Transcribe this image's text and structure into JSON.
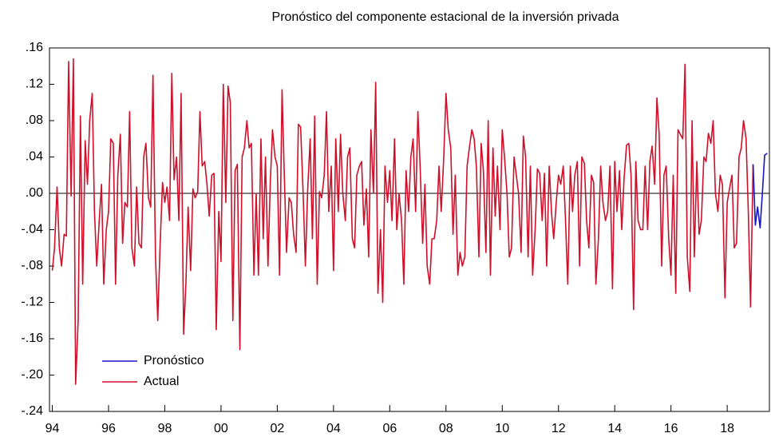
{
  "chart_data": {
    "type": "line",
    "title": "Pronóstico del componente estacional de la inversión privada",
    "xlim": [
      1993.9,
      2019.5
    ],
    "xticks": [
      {
        "value": 1994,
        "label": "94"
      },
      {
        "value": 1996,
        "label": "96"
      },
      {
        "value": 1998,
        "label": "98"
      },
      {
        "value": 2000,
        "label": "00"
      },
      {
        "value": 2002,
        "label": "02"
      },
      {
        "value": 2004,
        "label": "04"
      },
      {
        "value": 2006,
        "label": "06"
      },
      {
        "value": 2008,
        "label": "08"
      },
      {
        "value": 2010,
        "label": "10"
      },
      {
        "value": 2012,
        "label": "12"
      },
      {
        "value": 2014,
        "label": "14"
      },
      {
        "value": 2016,
        "label": "16"
      },
      {
        "value": 2018,
        "label": "18"
      }
    ],
    "ylim": [
      -0.24,
      0.16
    ],
    "yticks": [
      {
        "value": 0.16,
        "label": ".16"
      },
      {
        "value": 0.12,
        "label": ".12"
      },
      {
        "value": 0.08,
        "label": ".08"
      },
      {
        "value": 0.04,
        "label": ".04"
      },
      {
        "value": 0,
        "label": ".00"
      },
      {
        "value": -0.04,
        "label": "-.04"
      },
      {
        "value": -0.08,
        "label": "-.08"
      },
      {
        "value": -0.12,
        "label": "-.12"
      },
      {
        "value": -0.16,
        "label": "-.16"
      },
      {
        "value": -0.2,
        "label": "-.20"
      },
      {
        "value": -0.24,
        "label": "-.24"
      }
    ],
    "zero_line": true,
    "legend": "lower-left",
    "series": [
      {
        "name": "Pronóstico",
        "color": "#1414c8",
        "x": [
          2018.92,
          2019,
          2019.08,
          2019.17,
          2019.25,
          2019.33,
          2019.42
        ],
        "values": [
          0.032,
          -0.035,
          -0.015,
          -0.038,
          0.0,
          0.042,
          0.044
        ]
      },
      {
        "name": "Actual",
        "color": "#d0102a",
        "x": [
          1994,
          1994.08,
          1994.17,
          1994.25,
          1994.33,
          1994.42,
          1994.5,
          1994.58,
          1994.67,
          1994.75,
          1994.83,
          1994.92,
          1995,
          1995.08,
          1995.17,
          1995.25,
          1995.33,
          1995.42,
          1995.5,
          1995.58,
          1995.67,
          1995.75,
          1995.83,
          1995.92,
          1996,
          1996.08,
          1996.17,
          1996.25,
          1996.33,
          1996.42,
          1996.5,
          1996.58,
          1996.67,
          1996.75,
          1996.83,
          1996.92,
          1997,
          1997.08,
          1997.17,
          1997.25,
          1997.33,
          1997.42,
          1997.5,
          1997.58,
          1997.67,
          1997.75,
          1997.83,
          1997.92,
          1998,
          1998.08,
          1998.17,
          1998.25,
          1998.33,
          1998.42,
          1998.5,
          1998.58,
          1998.67,
          1998.75,
          1998.83,
          1998.92,
          1999,
          1999.08,
          1999.17,
          1999.25,
          1999.33,
          1999.42,
          1999.5,
          1999.58,
          1999.67,
          1999.75,
          1999.83,
          1999.92,
          2000,
          2000.08,
          2000.17,
          2000.25,
          2000.33,
          2000.42,
          2000.5,
          2000.58,
          2000.67,
          2000.75,
          2000.83,
          2000.92,
          2001,
          2001.08,
          2001.17,
          2001.25,
          2001.33,
          2001.42,
          2001.5,
          2001.58,
          2001.67,
          2001.75,
          2001.83,
          2001.92,
          2002,
          2002.08,
          2002.17,
          2002.25,
          2002.33,
          2002.42,
          2002.5,
          2002.58,
          2002.67,
          2002.75,
          2002.83,
          2002.92,
          2003,
          2003.08,
          2003.17,
          2003.25,
          2003.33,
          2003.42,
          2003.5,
          2003.58,
          2003.67,
          2003.75,
          2003.83,
          2003.92,
          2004,
          2004.08,
          2004.17,
          2004.25,
          2004.33,
          2004.42,
          2004.5,
          2004.58,
          2004.67,
          2004.75,
          2004.83,
          2004.92,
          2005,
          2005.08,
          2005.17,
          2005.25,
          2005.33,
          2005.42,
          2005.5,
          2005.58,
          2005.67,
          2005.75,
          2005.83,
          2005.92,
          2006,
          2006.08,
          2006.17,
          2006.25,
          2006.33,
          2006.42,
          2006.5,
          2006.58,
          2006.67,
          2006.75,
          2006.83,
          2006.92,
          2007,
          2007.08,
          2007.17,
          2007.25,
          2007.33,
          2007.42,
          2007.5,
          2007.58,
          2007.67,
          2007.75,
          2007.83,
          2007.92,
          2008,
          2008.08,
          2008.17,
          2008.25,
          2008.33,
          2008.42,
          2008.5,
          2008.58,
          2008.67,
          2008.75,
          2008.83,
          2008.92,
          2009,
          2009.08,
          2009.17,
          2009.25,
          2009.33,
          2009.42,
          2009.5,
          2009.58,
          2009.67,
          2009.75,
          2009.83,
          2009.92,
          2010,
          2010.08,
          2010.17,
          2010.25,
          2010.33,
          2010.42,
          2010.5,
          2010.58,
          2010.67,
          2010.75,
          2010.83,
          2010.92,
          2011,
          2011.08,
          2011.17,
          2011.25,
          2011.33,
          2011.42,
          2011.5,
          2011.58,
          2011.67,
          2011.75,
          2011.83,
          2011.92,
          2012,
          2012.08,
          2012.17,
          2012.25,
          2012.33,
          2012.42,
          2012.5,
          2012.58,
          2012.67,
          2012.75,
          2012.83,
          2012.92,
          2013,
          2013.08,
          2013.17,
          2013.25,
          2013.33,
          2013.42,
          2013.5,
          2013.58,
          2013.67,
          2013.75,
          2013.83,
          2013.92,
          2014,
          2014.08,
          2014.17,
          2014.25,
          2014.33,
          2014.42,
          2014.5,
          2014.58,
          2014.67,
          2014.75,
          2014.83,
          2014.92,
          2015,
          2015.08,
          2015.17,
          2015.25,
          2015.33,
          2015.42,
          2015.5,
          2015.58,
          2015.67,
          2015.75,
          2015.83,
          2015.92,
          2016,
          2016.08,
          2016.17,
          2016.25,
          2016.33,
          2016.42,
          2016.5,
          2016.58,
          2016.67,
          2016.75,
          2016.83,
          2016.92,
          2017,
          2017.08,
          2017.17,
          2017.25,
          2017.33,
          2017.42,
          2017.5,
          2017.58,
          2017.67,
          2017.75,
          2017.83,
          2017.92,
          2018,
          2018.08,
          2018.17,
          2018.25,
          2018.33,
          2018.42,
          2018.5,
          2018.58,
          2018.67,
          2018.75,
          2018.83,
          2018.92
        ],
        "values": [
          -0.085,
          -0.06,
          0.007,
          -0.06,
          -0.08,
          -0.045,
          -0.047,
          0.145,
          -0.003,
          0.148,
          -0.21,
          -0.14,
          0.085,
          -0.1,
          0.058,
          0.01,
          0.08,
          0.11,
          -0.02,
          -0.08,
          -0.03,
          0.01,
          -0.1,
          -0.04,
          -0.02,
          0.06,
          0.055,
          -0.1,
          0.02,
          0.065,
          -0.055,
          -0.01,
          -0.015,
          0.09,
          -0.06,
          -0.08,
          0.007,
          -0.055,
          -0.06,
          0.04,
          0.055,
          -0.005,
          -0.015,
          0.13,
          -0.07,
          -0.14,
          -0.06,
          0.012,
          -0.01,
          0.007,
          -0.03,
          0.132,
          0.015,
          0.04,
          -0.03,
          0.11,
          -0.155,
          -0.1,
          -0.015,
          -0.085,
          0.005,
          -0.005,
          0.002,
          0.09,
          0.03,
          0.035,
          0.01,
          -0.025,
          0.02,
          0.022,
          -0.15,
          -0.02,
          -0.075,
          0.12,
          -0.01,
          0.118,
          0.1,
          -0.14,
          0.025,
          0.032,
          -0.172,
          0.04,
          0.05,
          0.08,
          0.05,
          0.055,
          -0.09,
          0.0,
          -0.09,
          0.06,
          -0.05,
          0.04,
          -0.08,
          0.01,
          0.07,
          0.04,
          0.03,
          -0.09,
          0.114,
          0.02,
          -0.065,
          -0.005,
          -0.01,
          -0.045,
          -0.065,
          0.076,
          0.073,
          0.0,
          -0.08,
          0.003,
          0.06,
          -0.05,
          0.085,
          -0.1,
          0.002,
          -0.005,
          0.02,
          0.09,
          -0.02,
          0.03,
          -0.085,
          0.06,
          -0.02,
          0.065,
          0.0,
          -0.03,
          0.04,
          0.05,
          -0.05,
          -0.06,
          0.02,
          0.03,
          0.035,
          -0.035,
          0.005,
          -0.07,
          0.07,
          0.0,
          0.122,
          -0.11,
          -0.04,
          -0.12,
          0.03,
          -0.01,
          0.025,
          -0.03,
          0.06,
          -0.04,
          0.0,
          -0.03,
          -0.1,
          0.025,
          -0.02,
          0.04,
          0.06,
          -0.02,
          0.09,
          0.03,
          -0.055,
          0.01,
          -0.08,
          -0.1,
          -0.05,
          -0.05,
          -0.03,
          0.03,
          -0.02,
          0.04,
          0.11,
          0.07,
          0.05,
          -0.045,
          0.02,
          -0.09,
          -0.065,
          -0.08,
          -0.07,
          0.03,
          0.05,
          0.07,
          0.06,
          0.03,
          -0.07,
          0.055,
          0.025,
          -0.065,
          0.08,
          -0.09,
          0.05,
          -0.025,
          0.03,
          -0.04,
          0.07,
          0.04,
          0.0,
          -0.07,
          -0.06,
          0.04,
          0.02,
          0.0,
          -0.065,
          0.063,
          0.04,
          -0.07,
          0.03,
          -0.09,
          -0.04,
          0.027,
          0.022,
          -0.03,
          0.022,
          -0.08,
          0.03,
          -0.02,
          -0.05,
          -0.01,
          0.02,
          0.01,
          0.03,
          -0.03,
          -0.1,
          0.03,
          -0.02,
          0.02,
          0.035,
          -0.08,
          0.04,
          0.033,
          -0.03,
          -0.06,
          0.02,
          0.012,
          -0.1,
          -0.05,
          0.03,
          -0.01,
          -0.03,
          -0.02,
          0.03,
          -0.105,
          0.035,
          -0.02,
          0.025,
          -0.04,
          0.015,
          0.053,
          0.055,
          0.02,
          -0.128,
          0.035,
          -0.03,
          -0.04,
          -0.04,
          0.03,
          -0.04,
          0.035,
          0.052,
          0.01,
          0.105,
          0.065,
          -0.08,
          0.02,
          0.03,
          -0.05,
          -0.09,
          0.02,
          -0.11,
          0.07,
          0.065,
          0.06,
          0.142,
          -0.07,
          -0.108,
          0.08,
          -0.07,
          0.035,
          -0.045,
          -0.03,
          0.04,
          0.035,
          0.066,
          0.055,
          0.08,
          0.0,
          -0.02,
          0.02,
          0.01,
          -0.115,
          -0.01,
          0.005,
          0.02,
          -0.06,
          -0.055,
          0.04,
          0.05,
          0.08,
          0.06,
          -0.02,
          -0.125,
          0.032
        ]
      }
    ]
  }
}
